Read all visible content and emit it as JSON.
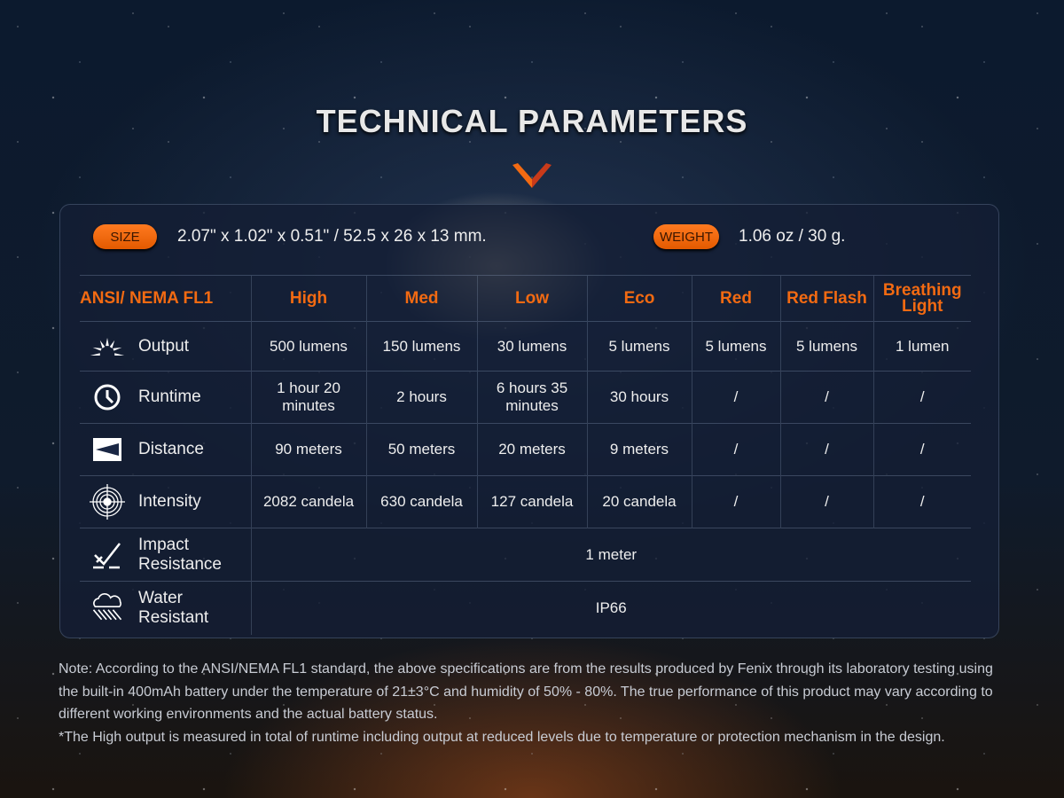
{
  "title": "TECHNICAL PARAMETERS",
  "accent": "#f26a12",
  "size": {
    "label": "SIZE",
    "value": "2.07\" x 1.02\" x 0.51\" / 52.5 x 26 x 13 mm."
  },
  "weight": {
    "label": "WEIGHT",
    "value": "1.06 oz / 30 g."
  },
  "table": {
    "headers": [
      "ANSI/ NEMA  FL1",
      "High",
      "Med",
      "Low",
      "Eco",
      "Red",
      "Red Flash",
      "Breathing Light"
    ],
    "rows": [
      {
        "icon": "sun-rays-icon",
        "label": "Output",
        "cells": [
          "500 lumens",
          "150 lumens",
          "30 lumens",
          "5 lumens",
          "5 lumens",
          "5 lumens",
          "1 lumen"
        ]
      },
      {
        "icon": "clock-icon",
        "label": "Runtime",
        "cells": [
          "1 hour 20 minutes",
          "2 hours",
          "6 hours 35 minutes",
          "30 hours",
          "/",
          "/",
          "/"
        ]
      },
      {
        "icon": "beam-distance-icon",
        "label": "Distance",
        "cells": [
          "90 meters",
          "50 meters",
          "20 meters",
          "9 meters",
          "/",
          "/",
          "/"
        ]
      },
      {
        "icon": "target-icon",
        "label": "Intensity",
        "cells": [
          "2082 candela",
          "630 candela",
          "127 candela",
          "20 candela",
          "/",
          "/",
          "/"
        ]
      },
      {
        "icon": "impact-check-icon",
        "label": "Impact Resistance",
        "span": "1 meter"
      },
      {
        "icon": "rain-cloud-icon",
        "label": "Water Resistant",
        "span": "IP66"
      }
    ]
  },
  "note": [
    "Note: According to the ANSI/NEMA FL1 standard, the above specifications are from the results produced by Fenix through its laboratory testing using the built-in 400mAh battery under the temperature of 21±3°C and humidity of 50% - 80%. The true performance of this product may vary according to different working environments and the actual battery status.",
    "*The High output is measured in total of runtime including output at reduced levels due to temperature or protection mechanism in the design."
  ]
}
